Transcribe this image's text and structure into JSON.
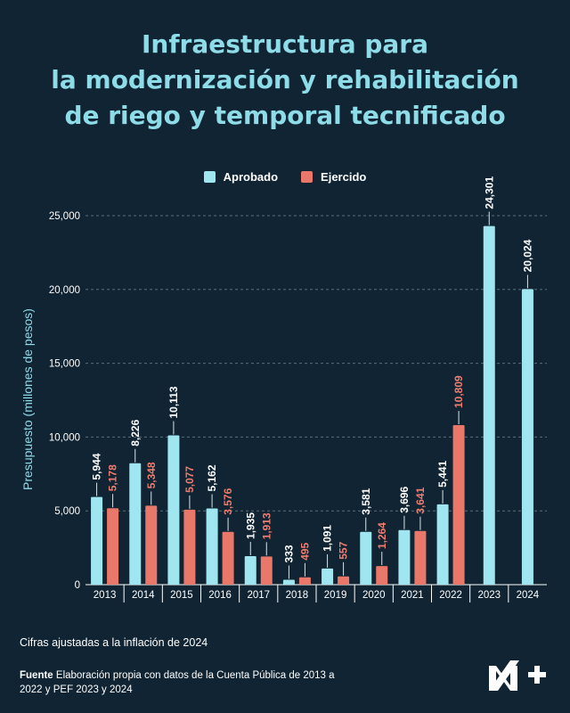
{
  "title_lines": [
    "Infraestructura para",
    "la modernización y rehabilitación",
    "de riego y temporal tecnificado"
  ],
  "legend": [
    {
      "label": "Aprobado",
      "color": "#9fe6f0"
    },
    {
      "label": "Ejercido",
      "color": "#e9776a"
    }
  ],
  "colors": {
    "background": "#102433",
    "title": "#8fdce9",
    "approved": "#9fe6f0",
    "spent": "#e9776a",
    "approved_label": "#ffffff",
    "spent_label": "#f07d6f",
    "axis_label": "#8fdce9"
  },
  "chart_data": {
    "type": "bar",
    "title": "Infraestructura para la modernización y rehabilitación de riego y temporal tecnificado",
    "xlabel": "",
    "ylabel": "Presupuesto (millones de pesos)",
    "ylim": [
      0,
      25000
    ],
    "yticks": [
      0,
      5000,
      10000,
      15000,
      20000,
      25000
    ],
    "ytick_labels": [
      "0",
      "5,000",
      "10,000",
      "15,000",
      "20,000",
      "25,000"
    ],
    "grid": true,
    "legend_position": "top-center",
    "categories": [
      "2013",
      "2014",
      "2015",
      "2016",
      "2017",
      "2018",
      "2019",
      "2020",
      "2021",
      "2022",
      "2023",
      "2024"
    ],
    "series": [
      {
        "name": "Aprobado",
        "values": [
          5944,
          8226,
          10113,
          5162,
          1935,
          333,
          1091,
          3581,
          3696,
          5441,
          24301,
          20024
        ],
        "labels": [
          "5,944",
          "8,226",
          "10,113",
          "5,162",
          "1,935",
          "333",
          "1,091",
          "3,581",
          "3,696",
          "5,441",
          "24,301",
          "20,024"
        ]
      },
      {
        "name": "Ejercido",
        "values": [
          5178,
          5348,
          5077,
          3576,
          1913,
          495,
          557,
          1264,
          3641,
          10809,
          null,
          null
        ],
        "labels": [
          "5,178",
          "5,348",
          "5,077",
          "3,576",
          "1,913",
          "495",
          "557",
          "1,264",
          "3,641",
          "10,809",
          null,
          null
        ]
      }
    ]
  },
  "footnote": "Cifras ajustadas a la inflación de 2024",
  "source": {
    "label": "Fuente",
    "text": " Elaboración propia con datos de la Cuenta Pública de 2013 a 2022 y PEF 2023 y 2024"
  },
  "logo": {
    "text": "N+",
    "icon": "n-plus-logo"
  }
}
